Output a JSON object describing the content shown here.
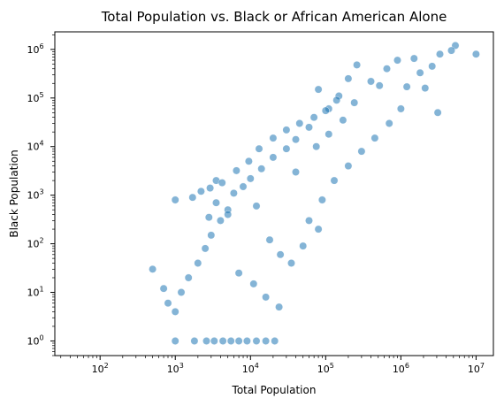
{
  "chart_data": {
    "type": "scatter",
    "title": "Total Population vs. Black or African American Alone",
    "xlabel": "Total Population",
    "ylabel": "Black Population",
    "x_scale": "log",
    "y_scale": "log",
    "xlim": [
      25,
      17000000
    ],
    "ylim": [
      0.5,
      2300000
    ],
    "grid": false,
    "point_color": "#1f77b4",
    "x_ticks": [
      {
        "base": "10",
        "exp": "2",
        "value": 100
      },
      {
        "base": "10",
        "exp": "3",
        "value": 1000
      },
      {
        "base": "10",
        "exp": "4",
        "value": 10000
      },
      {
        "base": "10",
        "exp": "5",
        "value": 100000
      },
      {
        "base": "10",
        "exp": "6",
        "value": 1000000
      },
      {
        "base": "10",
        "exp": "7",
        "value": 10000000
      }
    ],
    "y_ticks": [
      {
        "base": "10",
        "exp": "0",
        "value": 1
      },
      {
        "base": "10",
        "exp": "1",
        "value": 10
      },
      {
        "base": "10",
        "exp": "2",
        "value": 100
      },
      {
        "base": "10",
        "exp": "3",
        "value": 1000
      },
      {
        "base": "10",
        "exp": "4",
        "value": 10000
      },
      {
        "base": "10",
        "exp": "5",
        "value": 100000
      },
      {
        "base": "10",
        "exp": "6",
        "value": 1000000
      }
    ],
    "points": [
      [
        10000000,
        800000
      ],
      [
        5300000,
        1200000
      ],
      [
        4700000,
        950000
      ],
      [
        3300000,
        800000
      ],
      [
        2600000,
        450000
      ],
      [
        3100000,
        50000
      ],
      [
        2100000,
        160000
      ],
      [
        1800000,
        330000
      ],
      [
        1500000,
        650000
      ],
      [
        1200000,
        170000
      ],
      [
        900000,
        600000
      ],
      [
        650000,
        400000
      ],
      [
        520000,
        180000
      ],
      [
        400000,
        220000
      ],
      [
        260000,
        480000
      ],
      [
        200000,
        250000
      ],
      [
        150000,
        110000
      ],
      [
        110000,
        60000
      ],
      [
        80000,
        150000
      ],
      [
        60000,
        25000
      ],
      [
        40000,
        14000
      ],
      [
        30000,
        9000
      ],
      [
        20000,
        6000
      ],
      [
        14000,
        3500
      ],
      [
        10000,
        2200
      ],
      [
        8000,
        1500
      ],
      [
        6000,
        1100
      ],
      [
        5000,
        500
      ],
      [
        4000,
        300
      ],
      [
        3000,
        150
      ],
      [
        2500,
        80
      ],
      [
        2000,
        40
      ],
      [
        1500,
        20
      ],
      [
        1200,
        10
      ],
      [
        1000,
        4
      ],
      [
        500,
        30
      ],
      [
        700,
        12
      ],
      [
        800,
        6
      ],
      [
        1000,
        1
      ],
      [
        1800,
        1
      ],
      [
        2600,
        1
      ],
      [
        3300,
        1
      ],
      [
        4300,
        1
      ],
      [
        5500,
        1
      ],
      [
        7000,
        1
      ],
      [
        9000,
        1
      ],
      [
        12000,
        1
      ],
      [
        16000,
        1
      ],
      [
        21000,
        1
      ],
      [
        1000,
        800
      ],
      [
        1700,
        900
      ],
      [
        2200,
        1200
      ],
      [
        2900,
        1400
      ],
      [
        3500,
        2000
      ],
      [
        2800,
        350
      ],
      [
        4200,
        1800
      ],
      [
        6500,
        3200
      ],
      [
        9500,
        5000
      ],
      [
        13000,
        9000
      ],
      [
        20000,
        15000
      ],
      [
        30000,
        22000
      ],
      [
        45000,
        30000
      ],
      [
        70000,
        40000
      ],
      [
        100000,
        55000
      ],
      [
        140000,
        90000
      ],
      [
        60000,
        300
      ],
      [
        90000,
        800
      ],
      [
        130000,
        2000
      ],
      [
        200000,
        4000
      ],
      [
        300000,
        8000
      ],
      [
        450000,
        15000
      ],
      [
        700000,
        30000
      ],
      [
        1000000,
        60000
      ],
      [
        18000,
        120
      ],
      [
        25000,
        60
      ],
      [
        35000,
        40
      ],
      [
        50000,
        90
      ],
      [
        80000,
        200
      ],
      [
        7000,
        25
      ],
      [
        11000,
        15
      ],
      [
        16000,
        8
      ],
      [
        24000,
        5
      ],
      [
        5000,
        400
      ],
      [
        3500,
        700
      ],
      [
        12000,
        600
      ],
      [
        40000,
        3000
      ],
      [
        75000,
        10000
      ],
      [
        110000,
        18000
      ],
      [
        170000,
        35000
      ],
      [
        240000,
        80000
      ]
    ]
  }
}
